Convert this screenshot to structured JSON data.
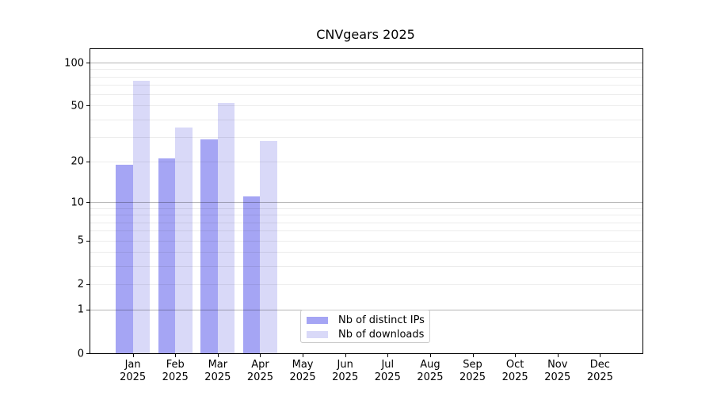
{
  "figure": {
    "title": "CNVgears 2025"
  },
  "legend": {
    "items": [
      {
        "label": "Nb of distinct IPs",
        "color": "#a5a5f4"
      },
      {
        "label": "Nb of downloads",
        "color": "#d9d9f8"
      }
    ]
  },
  "x_axis": {
    "months": [
      "Jan",
      "Feb",
      "Mar",
      "Apr",
      "May",
      "Jun",
      "Jul",
      "Aug",
      "Sep",
      "Oct",
      "Nov",
      "Dec"
    ],
    "year": "2025"
  },
  "y_axis": {
    "ticks": [
      100,
      50,
      20,
      10,
      5,
      2,
      1,
      0
    ]
  },
  "chart_data": {
    "type": "bar",
    "title": "CNVgears 2025",
    "categories": [
      "Jan 2025",
      "Feb 2025",
      "Mar 2025",
      "Apr 2025",
      "May 2025",
      "Jun 2025",
      "Jul 2025",
      "Aug 2025",
      "Sep 2025",
      "Oct 2025",
      "Nov 2025",
      "Dec 2025"
    ],
    "series": [
      {
        "name": "Nb of distinct IPs",
        "color": "#a5a5f4",
        "values": [
          19,
          21,
          29,
          11,
          0,
          0,
          0,
          0,
          0,
          0,
          0,
          0
        ]
      },
      {
        "name": "Nb of downloads",
        "color": "#d9d9f8",
        "values": [
          75,
          35,
          52,
          28,
          0,
          0,
          0,
          0,
          0,
          0,
          0,
          0
        ]
      }
    ],
    "yscale": "log1p",
    "yticks": [
      0,
      1,
      2,
      5,
      10,
      20,
      50,
      100
    ],
    "minor_grid_values": [
      2,
      3,
      4,
      5,
      6,
      7,
      8,
      9,
      20,
      30,
      40,
      50,
      60,
      70,
      80,
      90
    ],
    "major_grid_values": [
      1,
      10,
      100
    ],
    "ylim": [
      0,
      125
    ],
    "grid": true,
    "legend_position": "lower-center",
    "xlabel": "",
    "ylabel": ""
  }
}
